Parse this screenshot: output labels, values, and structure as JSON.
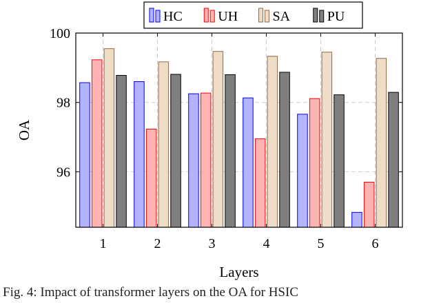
{
  "chart_data": {
    "type": "bar",
    "categories": [
      "1",
      "2",
      "3",
      "4",
      "5",
      "6"
    ],
    "series": [
      {
        "name": "HC",
        "values": [
          98.57,
          98.6,
          98.25,
          98.13,
          97.66,
          94.83
        ]
      },
      {
        "name": "UH",
        "values": [
          99.23,
          97.23,
          98.27,
          96.95,
          98.11,
          95.7
        ]
      },
      {
        "name": "SA",
        "values": [
          99.55,
          99.17,
          99.47,
          99.33,
          99.45,
          99.27
        ]
      },
      {
        "name": "PU",
        "values": [
          98.78,
          98.81,
          98.8,
          98.87,
          98.22,
          98.29
        ]
      }
    ],
    "xlabel": "Layers",
    "ylabel": "OA",
    "ylim": [
      94.4,
      100
    ],
    "yticks": [
      96,
      98,
      100
    ],
    "grid": true,
    "legend": "top",
    "colors": {
      "HC": {
        "fill": "#b3b3ff",
        "stroke": "#0000ff"
      },
      "UH": {
        "fill": "#ffb3b3",
        "stroke": "#ff0000"
      },
      "SA": {
        "fill": "#efdcc6",
        "stroke": "#8c6a4a"
      },
      "PU": {
        "fill": "#7f7f7f",
        "stroke": "#000000"
      }
    }
  },
  "caption": "Fig. 4: Impact of transformer layers on the OA for HSIC"
}
